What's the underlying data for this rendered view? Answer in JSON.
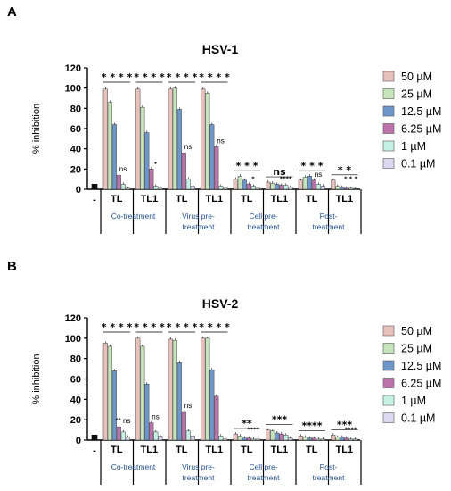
{
  "chart_data": [
    {
      "type": "bar",
      "panel_label": "A",
      "title": "HSV-1",
      "ylabel": "% inhibition",
      "ylim": [
        0,
        120
      ],
      "yticks": [
        0,
        20,
        40,
        60,
        80,
        100,
        120
      ],
      "control_label": "-",
      "control_value": 5,
      "series": [
        {
          "name": "50 µM",
          "color": "#e7c1bc"
        },
        {
          "name": "25 µM",
          "color": "#c5e4bc"
        },
        {
          "name": "12.5 µM",
          "color": "#6e96c9"
        },
        {
          "name": "6.25 µM",
          "color": "#bb73ac"
        },
        {
          "name": "1 µM",
          "color": "#c5f0e4"
        },
        {
          "name": "0.1 µM",
          "color": "#dcd8f2"
        }
      ],
      "categories": [
        "TL",
        "TL1",
        "TL",
        "TL1",
        "TL",
        "TL1",
        "TL",
        "TL1"
      ],
      "groups": [
        {
          "label": "Co-treatment"
        },
        {
          "label": "Virus pre-treatment"
        },
        {
          "label": "Cell pre-treatment"
        },
        {
          "label": "Post-treatment"
        }
      ],
      "values": [
        [
          99,
          86,
          64,
          14,
          5,
          1
        ],
        [
          99,
          81,
          56,
          20,
          3,
          1
        ],
        [
          99,
          100,
          79,
          36,
          10,
          3
        ],
        [
          99,
          95,
          64,
          42,
          3,
          1
        ],
        [
          10,
          13,
          9,
          5,
          3,
          1
        ],
        [
          7,
          6,
          5,
          4,
          4,
          2
        ],
        [
          9,
          12,
          13,
          9,
          5,
          3
        ],
        [
          9,
          3,
          2,
          1,
          1,
          0
        ]
      ],
      "significance": [
        [
          "* * * *",
          "ns"
        ],
        [
          "* * * *",
          "*"
        ],
        [
          "* * * *",
          "ns"
        ],
        [
          "* * * *",
          "ns"
        ],
        [
          "* * *",
          "*"
        ],
        [
          "ns",
          "****"
        ],
        [
          "* * *",
          "ns"
        ],
        [
          "* *",
          "* * *"
        ]
      ]
    },
    {
      "type": "bar",
      "panel_label": "B",
      "title": "HSV-2",
      "ylabel": "% inhibition",
      "ylim": [
        0,
        120
      ],
      "yticks": [
        0,
        20,
        40,
        60,
        80,
        100,
        120
      ],
      "control_label": "-",
      "control_value": 5,
      "series": [
        {
          "name": "50 µM",
          "color": "#e7c1bc"
        },
        {
          "name": "25 µM",
          "color": "#c5e4bc"
        },
        {
          "name": "12.5 µM",
          "color": "#6e96c9"
        },
        {
          "name": "6.25 µM",
          "color": "#bb73ac"
        },
        {
          "name": "1 µM",
          "color": "#c5f0e4"
        },
        {
          "name": "0.1 µM",
          "color": "#dcd8f2"
        }
      ],
      "categories": [
        "TL",
        "TL1",
        "TL",
        "TL1",
        "TL",
        "TL1",
        "TL",
        "TL1"
      ],
      "groups": [
        {
          "label": "Co-treatment"
        },
        {
          "label": "Virus pre-treatment"
        },
        {
          "label": "Cell pre-treatment"
        },
        {
          "label": "Post-treatment"
        }
      ],
      "values": [
        [
          95,
          92,
          68,
          13,
          8,
          3
        ],
        [
          100,
          92,
          55,
          17,
          8,
          4
        ],
        [
          99,
          98,
          76,
          28,
          9,
          4
        ],
        [
          100,
          100,
          69,
          43,
          4,
          1
        ],
        [
          6,
          4,
          2,
          2,
          1,
          1
        ],
        [
          10,
          9,
          7,
          6,
          5,
          2
        ],
        [
          4,
          3,
          2,
          2,
          1,
          1
        ],
        [
          5,
          3,
          3,
          2,
          1,
          1
        ]
      ],
      "significance": [
        [
          "* * * *",
          "** ns"
        ],
        [
          "* * * *",
          "ns"
        ],
        [
          "* * * *",
          "ns"
        ],
        [
          "* * * *",
          ""
        ],
        [
          "**",
          "****"
        ],
        [
          "***",
          ""
        ],
        [
          "****",
          ""
        ],
        [
          "***",
          "****"
        ]
      ]
    }
  ]
}
